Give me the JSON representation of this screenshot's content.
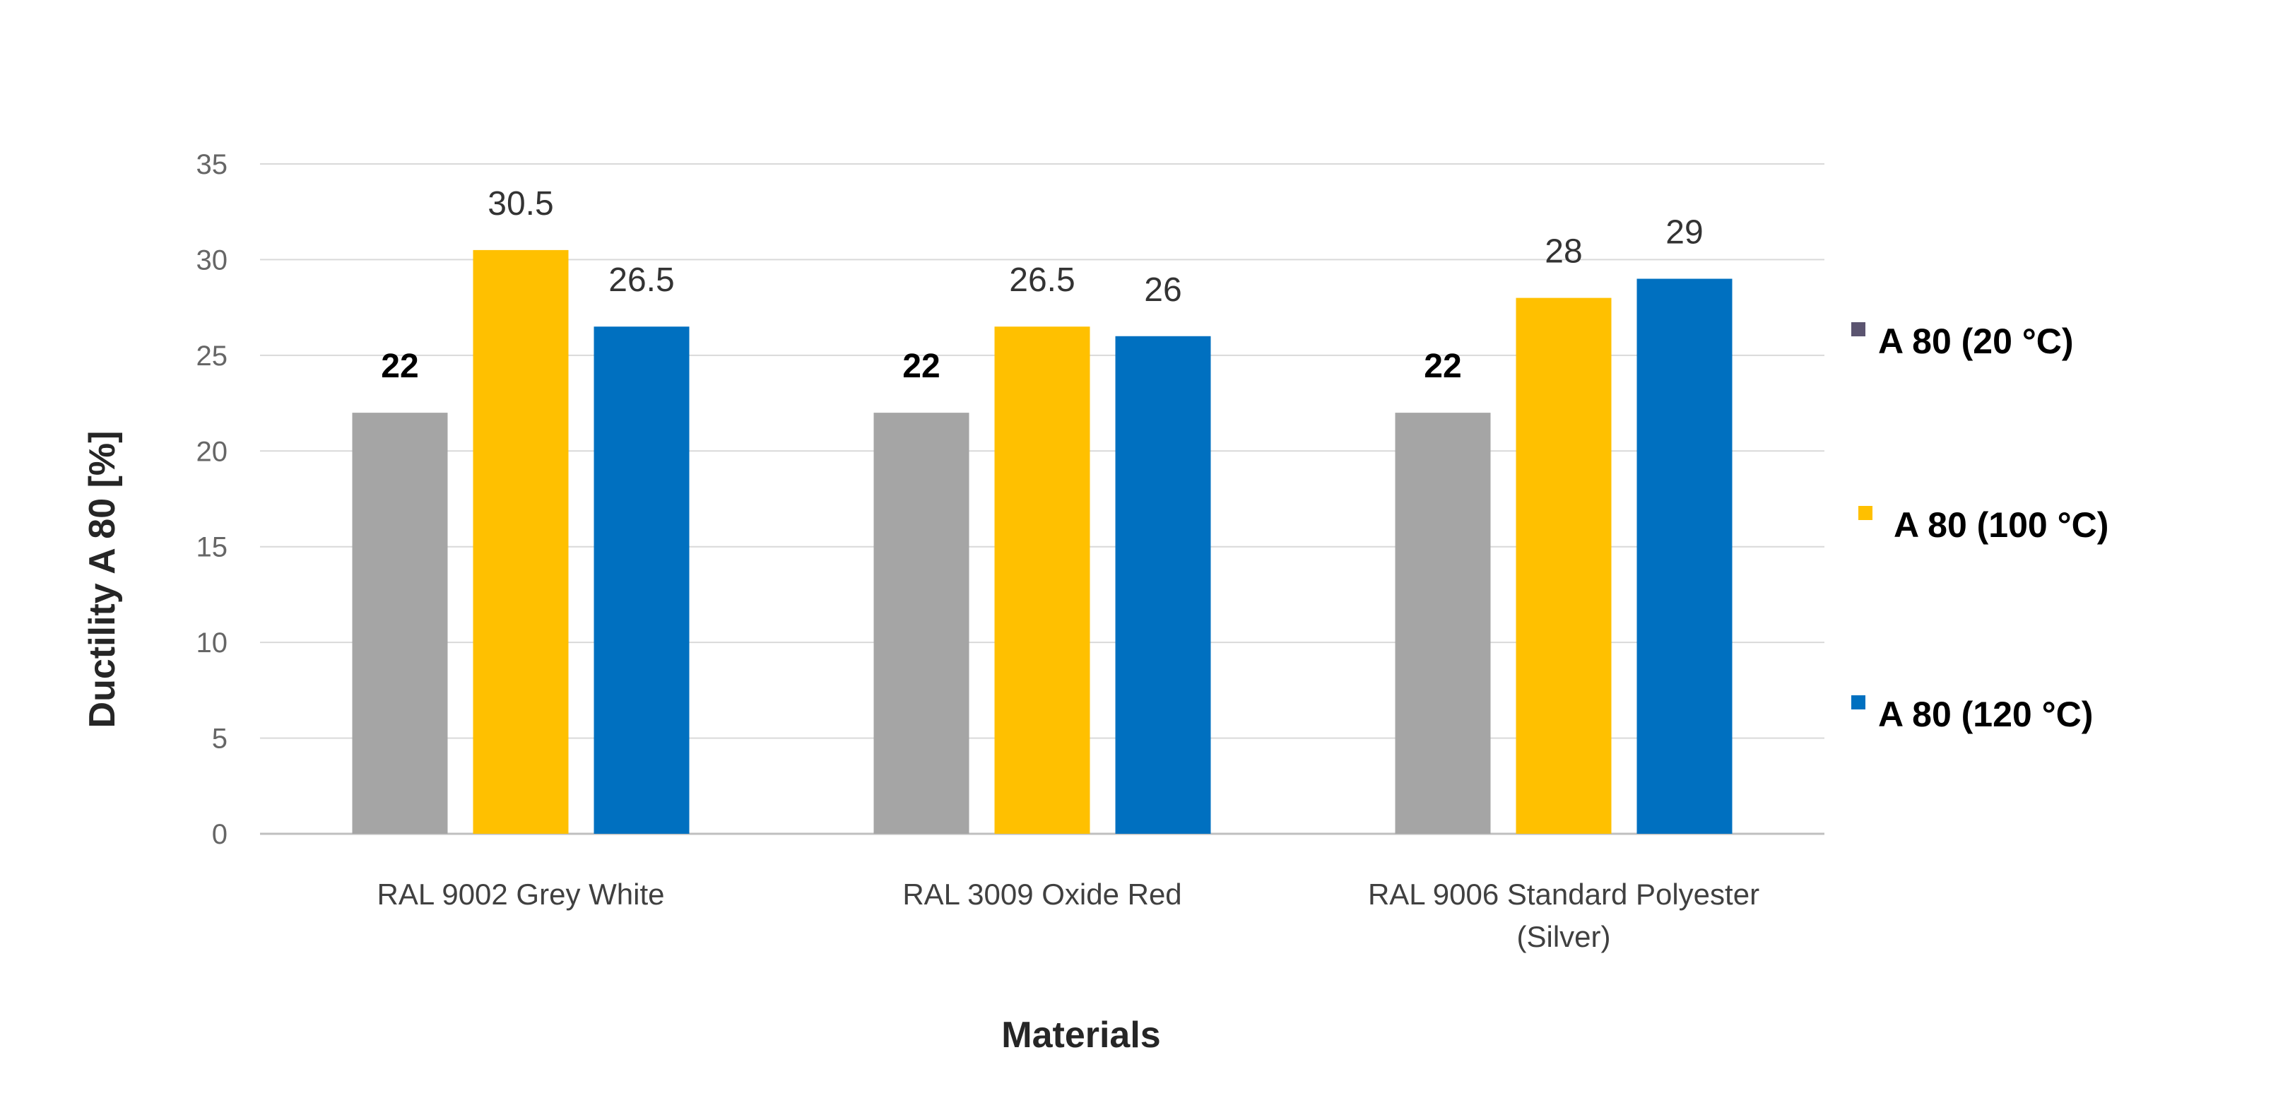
{
  "chart_data": {
    "type": "bar",
    "title": "",
    "xlabel": "Materials",
    "ylabel": "Ductility A 80 [%]",
    "ylim": [
      0,
      35
    ],
    "yticks": [
      0,
      5,
      10,
      15,
      20,
      25,
      30,
      35
    ],
    "grid": true,
    "legend_position": "right",
    "categories": [
      [
        "RAL 9002 Grey White"
      ],
      [
        "RAL 3009 Oxide Red"
      ],
      [
        "RAL 9006 Standard Polyester",
        "(Silver)"
      ]
    ],
    "series": [
      {
        "name": "A 80 (20 °C)",
        "values": [
          22,
          22,
          22
        ],
        "labels": [
          "22",
          "22",
          "22"
        ],
        "color": "#a5a5a5",
        "legend_color": "#5b5470",
        "label_bold": true
      },
      {
        "name": "A 80 (100 °C)",
        "values": [
          30.5,
          26.5,
          28
        ],
        "labels": [
          "30.5",
          "26.5",
          "28"
        ],
        "color": "#ffc000",
        "legend_color": "#ffc000",
        "label_bold": false
      },
      {
        "name": "A 80 (120 °C)",
        "values": [
          26.5,
          26,
          29
        ],
        "labels": [
          "26.5",
          "26",
          "29"
        ],
        "color": "#0070c0",
        "legend_color": "#0070c0",
        "label_bold": false
      }
    ]
  }
}
